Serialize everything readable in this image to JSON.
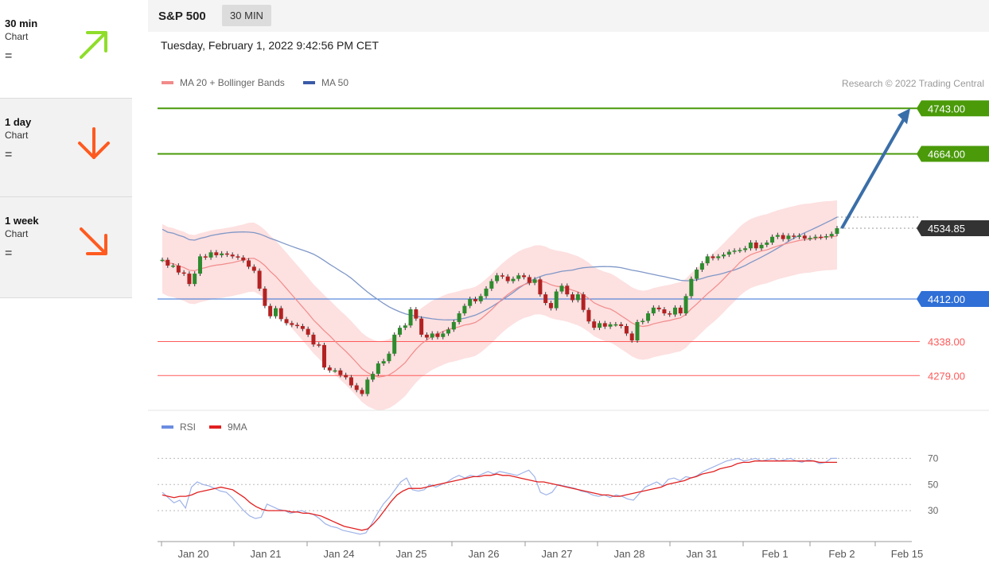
{
  "sidebar": {
    "items": [
      {
        "title": "30 min",
        "sub": "Chart",
        "eq": "=",
        "arrow": "up-right",
        "color": "#8fdd2a"
      },
      {
        "title": "1 day",
        "sub": "Chart",
        "eq": "=",
        "arrow": "down",
        "color": "#ff5a1f"
      },
      {
        "title": "1 week",
        "sub": "Chart",
        "eq": "=",
        "arrow": "down-right",
        "color": "#ff5a1f"
      }
    ]
  },
  "header": {
    "title": "S&P 500",
    "timeframe": "30 MIN",
    "datetime": "Tuesday, February 1, 2022 9:42:56 PM CET",
    "legend": [
      {
        "label": "MA 20 + Bollinger Bands",
        "color": "#f28a8a"
      },
      {
        "label": "MA 50",
        "color": "#3a5aa8"
      }
    ],
    "credit": "Research © 2022 Trading Central"
  },
  "rsi_legend": [
    {
      "label": "RSI",
      "color": "#6b8ce0"
    },
    {
      "label": "9MA",
      "color": "#e22020"
    }
  ],
  "chart_data": {
    "type": "candlestick",
    "x_ticks": [
      "Jan 20",
      "Jan 21",
      "Jan 24",
      "Jan 25",
      "Jan 26",
      "Jan 27",
      "Jan 28",
      "Jan 31",
      "Feb 1",
      "Feb 2",
      "Feb 15"
    ],
    "levels": [
      {
        "value": 4743.0,
        "label": "4743.00",
        "color": "#4a9a0a",
        "kind": "resistance"
      },
      {
        "value": 4664.0,
        "label": "4664.00",
        "color": "#4a9a0a",
        "kind": "resistance"
      },
      {
        "value": 4534.85,
        "label": "4534.85",
        "color": "#333333",
        "kind": "last"
      },
      {
        "value": 4412.0,
        "label": "4412.00",
        "color": "#2f6fd6",
        "kind": "pivot"
      },
      {
        "value": 4338.0,
        "label": "4338.00",
        "color": "#ff5a5a",
        "kind": "support"
      },
      {
        "value": 4279.0,
        "label": "4279.00",
        "color": "#ff5a5a",
        "kind": "support"
      }
    ],
    "price_ylim": [
      4220,
      4800
    ],
    "target": {
      "from": 4534.85,
      "to": 4743.0
    },
    "candles_close": [
      4480,
      4470,
      4470,
      4458,
      4456,
      4438,
      4456,
      4486,
      4484,
      4493,
      4488,
      4491,
      4489,
      4486,
      4484,
      4479,
      4468,
      4461,
      4430,
      4400,
      4382,
      4396,
      4377,
      4370,
      4367,
      4365,
      4360,
      4350,
      4333,
      4332,
      4293,
      4288,
      4288,
      4280,
      4276,
      4262,
      4254,
      4247,
      4272,
      4282,
      4300,
      4304,
      4317,
      4350,
      4362,
      4366,
      4394,
      4378,
      4350,
      4345,
      4352,
      4346,
      4352,
      4359,
      4372,
      4387,
      4400,
      4412,
      4408,
      4417,
      4430,
      4443,
      4453,
      4451,
      4443,
      4447,
      4453,
      4450,
      4440,
      4446,
      4420,
      4405,
      4396,
      4425,
      4435,
      4420,
      4410,
      4420,
      4393,
      4373,
      4362,
      4370,
      4364,
      4368,
      4368,
      4365,
      4352,
      4340,
      4372,
      4374,
      4387,
      4397,
      4394,
      4387,
      4385,
      4397,
      4387,
      4417,
      4447,
      4463,
      4474,
      4486,
      4483,
      4486,
      4489,
      4494,
      4496,
      4497,
      4500,
      4510,
      4500,
      4506,
      4510,
      4520,
      4523,
      4516,
      4522,
      4520,
      4522,
      4517,
      4518,
      4520,
      4519,
      4521,
      4525,
      4534.85
    ],
    "rsi": {
      "ylim": [
        10,
        80
      ],
      "levels": [
        70,
        50,
        30
      ],
      "rsi_values": [
        44,
        40,
        36,
        38,
        32,
        48,
        52,
        50,
        49,
        47,
        45,
        44,
        40,
        35,
        30,
        26,
        24,
        25,
        35,
        33,
        31,
        30,
        28,
        29,
        30,
        28,
        27,
        24,
        20,
        18,
        17,
        15,
        14,
        13,
        12,
        13,
        20,
        28,
        35,
        40,
        46,
        52,
        55,
        46,
        45,
        46,
        50,
        48,
        50,
        52,
        55,
        57,
        55,
        57,
        56,
        58,
        60,
        58,
        60,
        59,
        58,
        57,
        59,
        61,
        56,
        44,
        42,
        44,
        50,
        49,
        48,
        47,
        45,
        44,
        42,
        41,
        42,
        40,
        42,
        41,
        39,
        38,
        43,
        48,
        50,
        52,
        49,
        54,
        55,
        53,
        56,
        55,
        57,
        60,
        62,
        64,
        66,
        68,
        69,
        70,
        68,
        69,
        70,
        68,
        69,
        70,
        68,
        69,
        70,
        68,
        67,
        69,
        68,
        66,
        67,
        70,
        70
      ],
      "ma_values": [
        42,
        41,
        40,
        41,
        41,
        42,
        44,
        45,
        46,
        47,
        48,
        47,
        46,
        43,
        40,
        36,
        33,
        31,
        30,
        30,
        30,
        30,
        29,
        29,
        28,
        28,
        27,
        26,
        24,
        22,
        20,
        18,
        17,
        16,
        15,
        16,
        20,
        25,
        31,
        37,
        42,
        45,
        47,
        47,
        47,
        48,
        49,
        50,
        51,
        52,
        53,
        54,
        55,
        56,
        56,
        57,
        57,
        58,
        57,
        57,
        56,
        55,
        54,
        53,
        52,
        52,
        51,
        50,
        49,
        48,
        47,
        46,
        45,
        44,
        43,
        42,
        42,
        41,
        41,
        42,
        43,
        44,
        45,
        46,
        47,
        48,
        50,
        51,
        52,
        53,
        55,
        56,
        58,
        59,
        60,
        62,
        63,
        64,
        66,
        67,
        67,
        68,
        68,
        68,
        68,
        68,
        68,
        68,
        68,
        68,
        68,
        68,
        67,
        67,
        67,
        67
      ]
    }
  }
}
